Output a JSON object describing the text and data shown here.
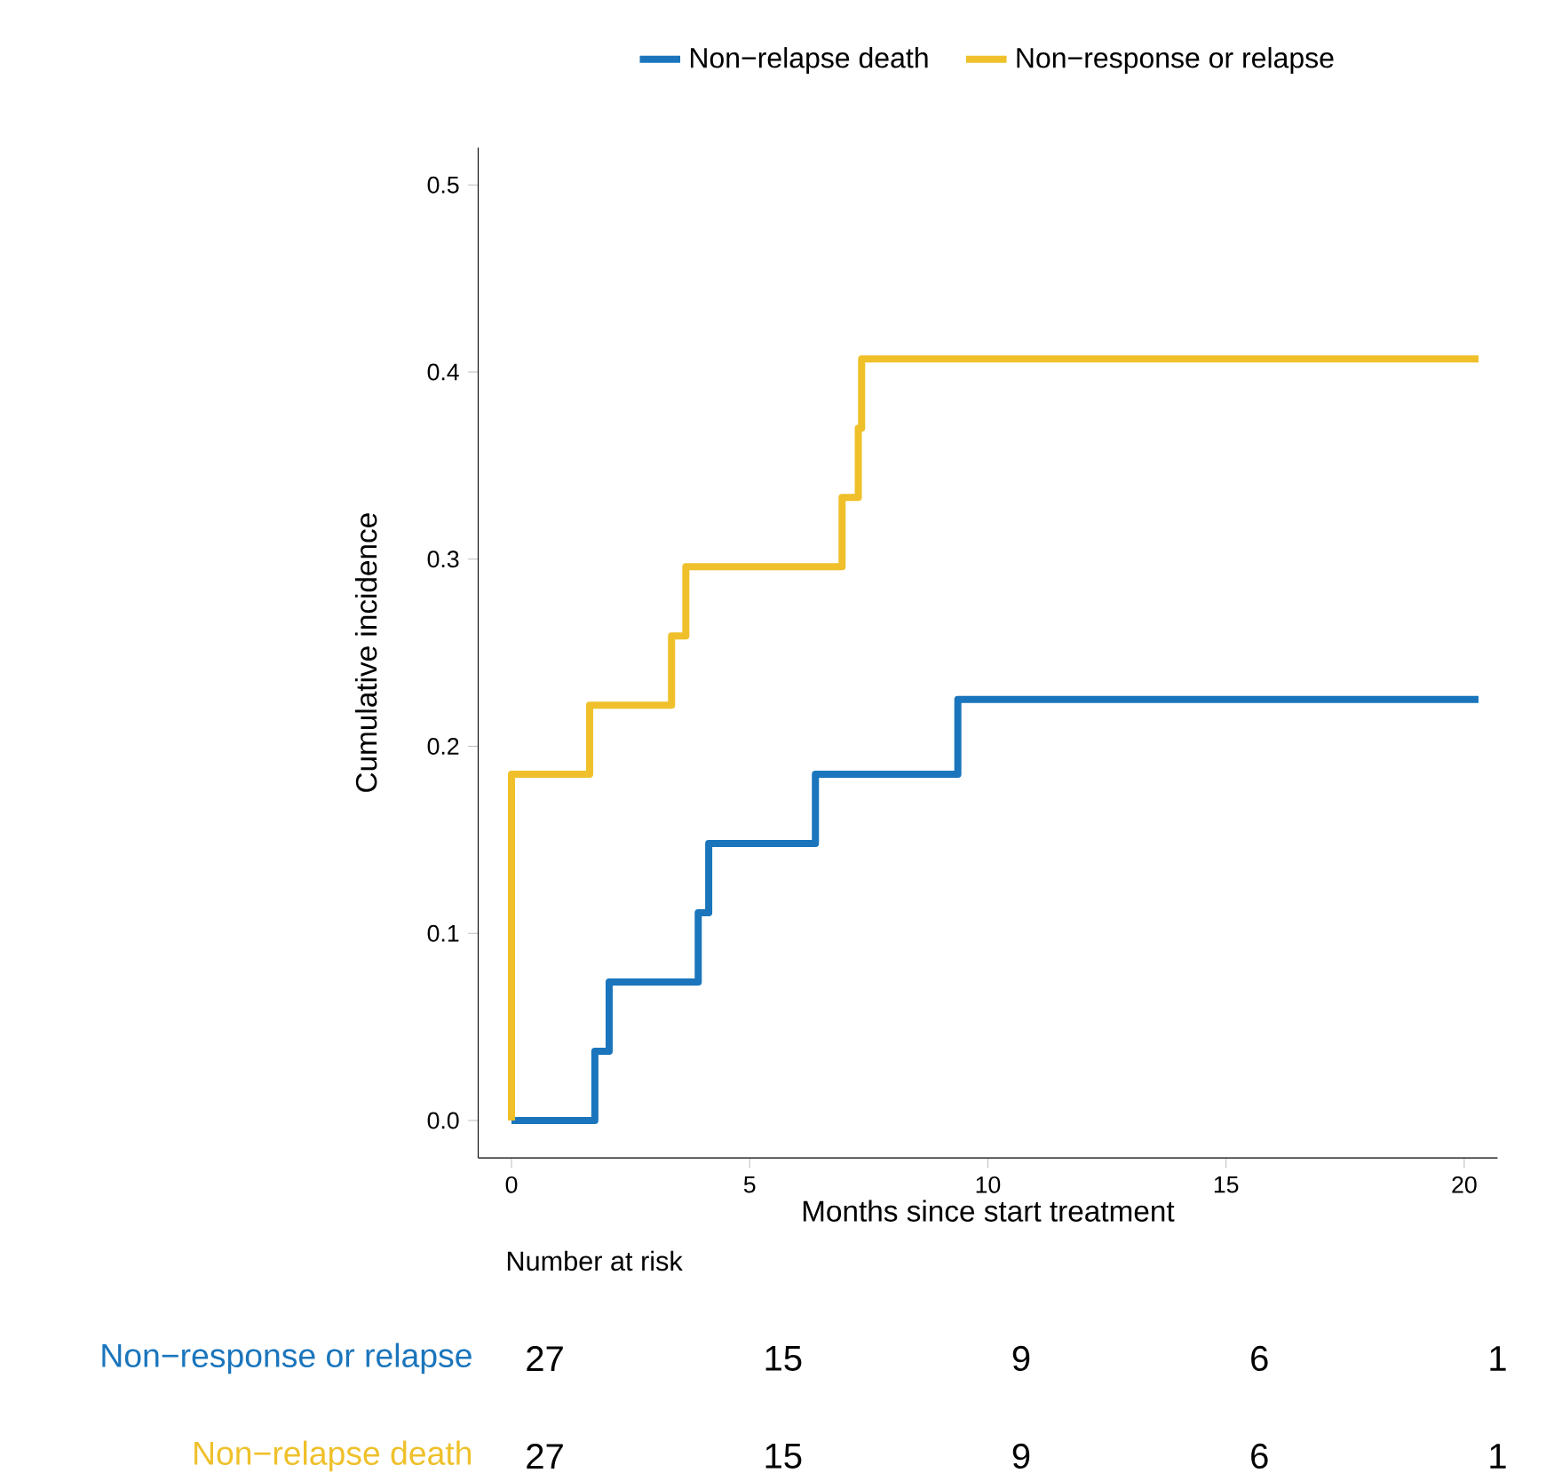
{
  "chart_data": {
    "type": "step",
    "xlabel": "Months since start treatment",
    "ylabel": "Cumulative incidence",
    "legend": "top",
    "xlim": [
      -0.7,
      20.7
    ],
    "xticks": [
      0,
      5,
      10,
      15,
      20
    ],
    "ylim": [
      -0.02,
      0.52
    ],
    "yticks": [
      {
        "value": 0,
        "label": "0.0"
      },
      0.1,
      0.2,
      0.3,
      0.4,
      0.5
    ],
    "series": [
      {
        "name": "Non−relapse death",
        "color": "#1a75bc",
        "x": [
          0,
          1.75,
          2.05,
          3.92,
          4.14,
          6.38,
          9.37,
          20.3
        ],
        "values": [
          0,
          0.037,
          0.074,
          0.111,
          0.148,
          0.185,
          0.225,
          0.225
        ]
      },
      {
        "name": "Non−response or relapse",
        "color": "#efc02a",
        "x": [
          0,
          0,
          1.64,
          3.36,
          3.66,
          6.94,
          7.28,
          7.35,
          20.3
        ],
        "values": [
          0,
          0.185,
          0.222,
          0.259,
          0.296,
          0.333,
          0.37,
          0.407,
          0.407
        ]
      }
    ],
    "annotations": [
      "Number at risk",
      "Non−response or relapse",
      "27",
      "15",
      "9",
      "6",
      "1",
      "Non−relapse death",
      "27",
      "15",
      "9",
      "6",
      "1"
    ]
  }
}
